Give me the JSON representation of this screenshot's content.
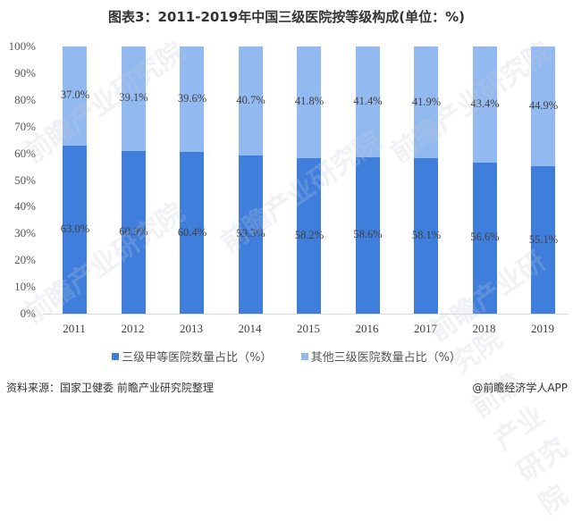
{
  "title": "图表3：2011-2019年中国三级医院按等级构成(单位：%)",
  "chart_data": {
    "type": "bar",
    "stacked": true,
    "percent_stacked": true,
    "title": "图表3：2011-2019年中国三级医院按等级构成(单位：%)",
    "xlabel": "",
    "ylabel": "",
    "ylim": [
      0,
      100
    ],
    "yticks": [
      "0%",
      "10%",
      "20%",
      "30%",
      "40%",
      "50%",
      "60%",
      "70%",
      "80%",
      "90%",
      "100%"
    ],
    "categories": [
      "2011",
      "2012",
      "2013",
      "2014",
      "2015",
      "2016",
      "2017",
      "2018",
      "2019"
    ],
    "series": [
      {
        "name": "三级甲等医院数量占比（%）",
        "color": "#3f7fdb",
        "values": [
          63.0,
          60.9,
          60.4,
          59.3,
          58.2,
          58.6,
          58.1,
          56.6,
          55.1
        ],
        "labels": [
          "63.0%",
          "60.9%",
          "60.4%",
          "59.3%",
          "58.2%",
          "58.6%",
          "58.1%",
          "56.6%",
          "55.1%"
        ]
      },
      {
        "name": "其他三级医院数量占比（%）",
        "color": "#93baf0",
        "values": [
          37.0,
          39.1,
          39.6,
          40.7,
          41.8,
          41.4,
          41.9,
          43.4,
          44.9
        ],
        "labels": [
          "37.0%",
          "39.1%",
          "39.6%",
          "40.7%",
          "41.8%",
          "41.4%",
          "41.9%",
          "43.4%",
          "44.9%"
        ]
      }
    ],
    "legend_position": "bottom",
    "grid": false
  },
  "legend": {
    "items": [
      {
        "label": "三级甲等医院数量占比（%）",
        "color": "#3f7fdb"
      },
      {
        "label": "其他三级医院数量占比（%）",
        "color": "#93baf0"
      }
    ]
  },
  "footer": {
    "source": "资料来源：国家卫健委 前瞻产业研究院整理",
    "brand": "@前瞻经济学人APP"
  },
  "watermark": "前瞻产业研究院"
}
